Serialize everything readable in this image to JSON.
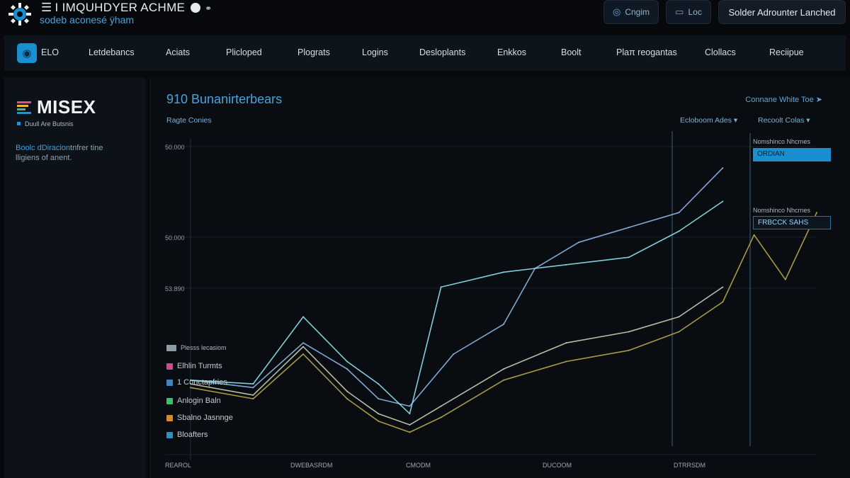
{
  "topbar": {
    "title": "I IMQUHDYER ACHME",
    "subtitle": "sodeb aconesé ÿham",
    "btn_option": "Cngim",
    "btn_loc": "Loc",
    "btn_launch": "Solder Adrounter Lanched"
  },
  "nav": {
    "items": [
      "ELO",
      "Letdebancs",
      "Aciats",
      "Plicloped",
      "Plograts",
      "Logins",
      "Desloplants",
      "Enkkos",
      "Boolt",
      "Plaπ reogantas",
      "Clollacs",
      "Reciipue"
    ]
  },
  "left": {
    "brand": "MISEX",
    "tagline": "Duull Are Butsnis",
    "desc_highlight": "Boolc dDiracion",
    "desc_rest": "tnfrer tine lligiens of anent."
  },
  "main": {
    "title": "910 Bunanirterbears",
    "subtitle": "Ragte Conies",
    "top_link": "Connane White Toe",
    "select1": "Ecloboom Ades",
    "select2": "Recoolt Colas",
    "legend": [
      {
        "label": "Elhlin Turmts",
        "color": "#d04b8c"
      },
      {
        "label": "1 Conctapfries",
        "color": "#3c86c8"
      },
      {
        "label": "Anlogin Baln",
        "color": "#3fbf6a"
      },
      {
        "label": "Sbalno Jasnnge",
        "color": "#d88a2a"
      },
      {
        "label": "Bloafters",
        "color": "#2f8ec4"
      }
    ],
    "legend_header": "Plesss lecasiom",
    "side": {
      "label1": "Nomshinco Nhcrnes",
      "input1": "ORDIAN",
      "label2": "Nomshinco Nhcrnes",
      "input2": "FRBCCK SAHS"
    }
  },
  "chart_data": {
    "type": "line",
    "y_tick_labels": [
      "50.000",
      "50.000",
      "53.890"
    ],
    "x_tick_labels": [
      "REAROL",
      "DWEBASRDM",
      "CMODM",
      "DUCOOM",
      "DTRRSDM"
    ],
    "series": [
      {
        "color": "#8fb8e6",
        "points": [
          [
            0,
            50.5
          ],
          [
            10,
            50.3
          ],
          [
            18,
            51.5
          ],
          [
            25,
            50.8
          ],
          [
            30,
            50.0
          ],
          [
            35,
            49.8
          ],
          [
            42,
            51.2
          ],
          [
            50,
            52.0
          ],
          [
            55,
            53.5
          ],
          [
            62,
            54.2
          ],
          [
            70,
            54.6
          ],
          [
            78,
            55.0
          ],
          [
            85,
            56.2
          ]
        ]
      },
      {
        "color": "#8fe0ee",
        "points": [
          [
            0,
            50.5
          ],
          [
            10,
            50.4
          ],
          [
            18,
            52.2
          ],
          [
            25,
            51.0
          ],
          [
            30,
            50.4
          ],
          [
            35,
            49.6
          ],
          [
            40,
            53.0
          ],
          [
            50,
            53.4
          ],
          [
            60,
            53.6
          ],
          [
            70,
            53.8
          ],
          [
            78,
            54.5
          ],
          [
            85,
            55.3
          ]
        ]
      },
      {
        "color": "#c9d0b0",
        "points": [
          [
            0,
            50.4
          ],
          [
            10,
            50.1
          ],
          [
            18,
            51.4
          ],
          [
            25,
            50.2
          ],
          [
            30,
            49.6
          ],
          [
            35,
            49.3
          ],
          [
            40,
            49.8
          ],
          [
            50,
            50.8
          ],
          [
            60,
            51.5
          ],
          [
            70,
            51.8
          ],
          [
            78,
            52.2
          ],
          [
            85,
            53.0
          ]
        ]
      },
      {
        "color": "#b9a84a",
        "points": [
          [
            0,
            50.3
          ],
          [
            10,
            50.0
          ],
          [
            18,
            51.2
          ],
          [
            25,
            50.0
          ],
          [
            30,
            49.4
          ],
          [
            35,
            49.1
          ],
          [
            40,
            49.5
          ],
          [
            50,
            50.5
          ],
          [
            60,
            51.0
          ],
          [
            70,
            51.3
          ],
          [
            78,
            51.8
          ],
          [
            85,
            52.6
          ],
          [
            90,
            54.4
          ],
          [
            95,
            53.2
          ],
          [
            100,
            55.0
          ]
        ]
      }
    ]
  }
}
